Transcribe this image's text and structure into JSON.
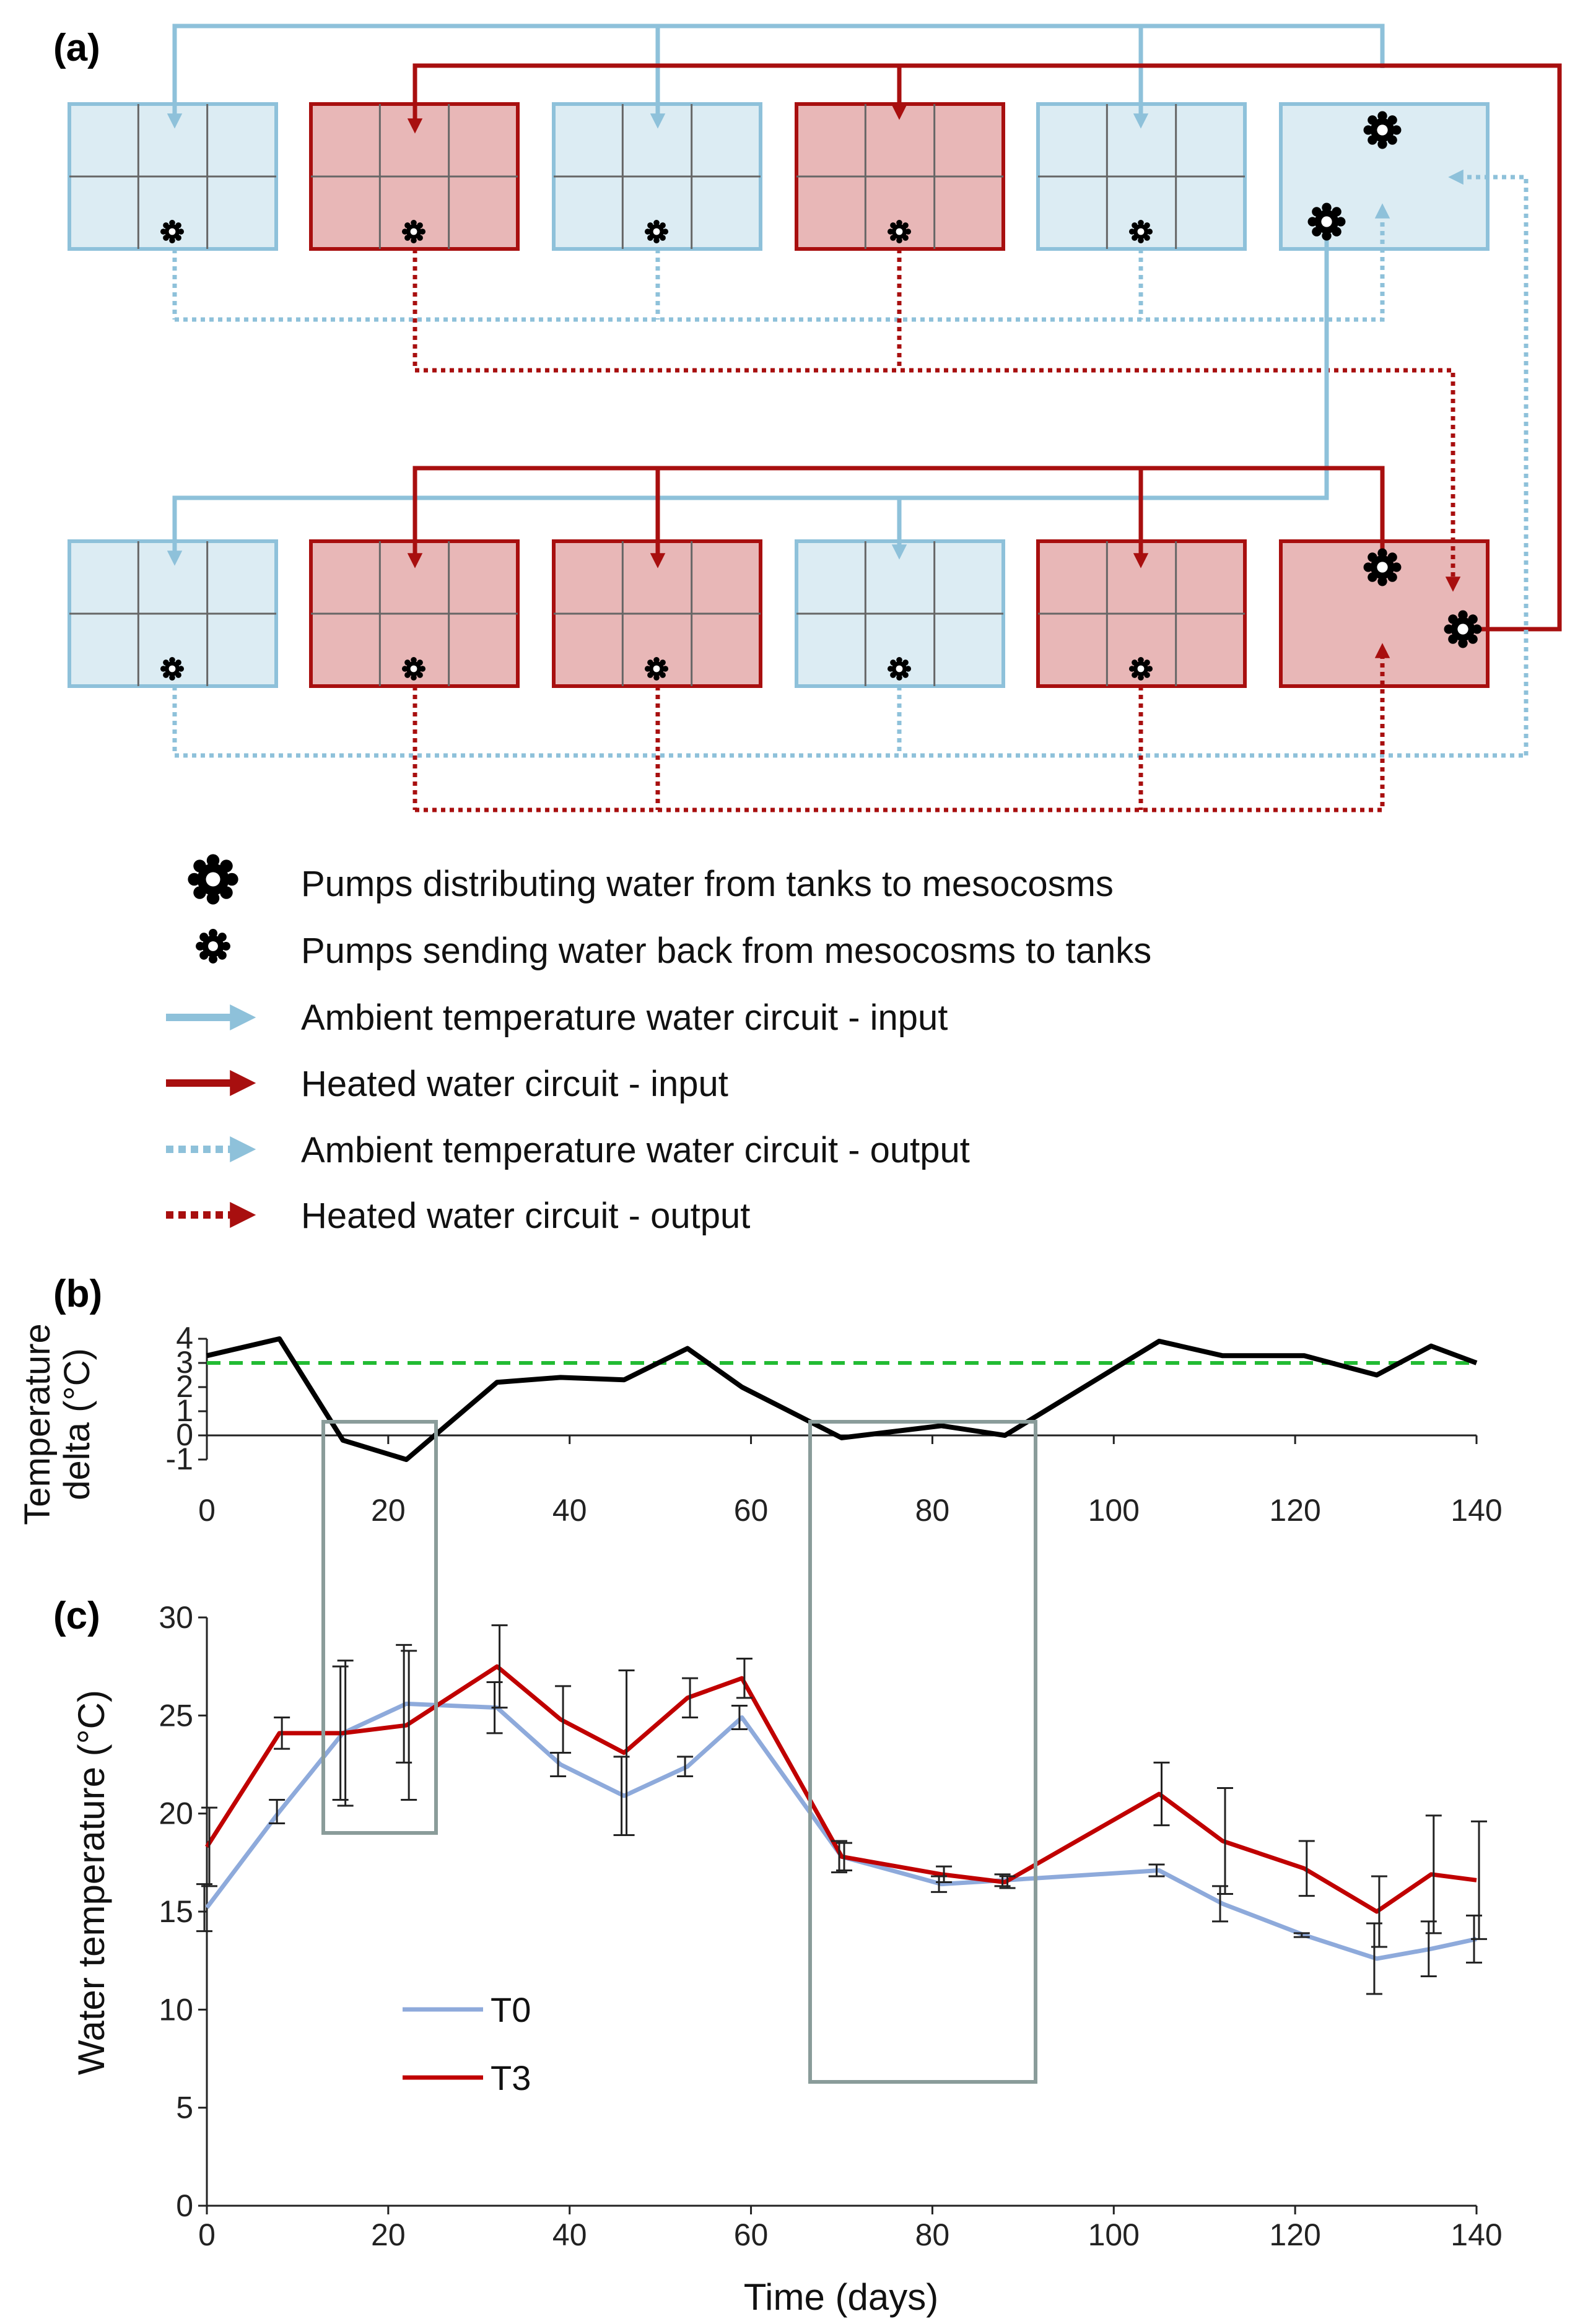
{
  "panel_a": {
    "label": "(a)",
    "legend": [
      {
        "symbol": "big-gear",
        "label": "Pumps distributing water from tanks to mesocosms"
      },
      {
        "symbol": "small-gear",
        "label": "Pumps sending water back from mesocosms to tanks"
      },
      {
        "symbol": "solid-blue",
        "label": "Ambient temperature water circuit - input"
      },
      {
        "symbol": "solid-red",
        "label": "Heated water circuit - input"
      },
      {
        "symbol": "dotted-blue",
        "label": "Ambient temperature water circuit - output"
      },
      {
        "symbol": "dotted-red",
        "label": "Heated water circuit - output"
      }
    ],
    "top_row": [
      "ambient",
      "heated",
      "ambient",
      "heated",
      "ambient",
      "ambient-tank"
    ],
    "bottom_row": [
      "ambient",
      "heated",
      "heated",
      "ambient",
      "heated",
      "heated-tank"
    ]
  },
  "colors": {
    "ambient_fill": "#dcecf3",
    "ambient_line": "#8ec1da",
    "heated_fill": "#e8b7b7",
    "heated_line": "#a80f0f",
    "t0_line": "#8eaadb",
    "t3_line": "#c00000",
    "target_line": "#22bb33",
    "highlight_box": "#8a9c9a"
  },
  "chart_data": [
    {
      "panel_label": "(b)",
      "type": "line",
      "ylabel_lines": [
        "Temperature",
        "delta (°C)"
      ],
      "ylim": [
        -1,
        4
      ],
      "yticks": [
        -1,
        0,
        1,
        2,
        3,
        4
      ],
      "xlim": [
        0,
        140
      ],
      "xticks": [
        0,
        20,
        40,
        60,
        80,
        100,
        120,
        140
      ],
      "target_line": 3,
      "series": [
        {
          "x": [
            0,
            8,
            15,
            22,
            32,
            39,
            46,
            53,
            59,
            70,
            81,
            88,
            105,
            112,
            121,
            129,
            135,
            140
          ],
          "y": [
            3.3,
            4.0,
            -0.2,
            -1.0,
            2.2,
            2.4,
            2.3,
            3.6,
            2.0,
            -0.1,
            0.4,
            0.0,
            3.9,
            3.3,
            3.3,
            2.5,
            3.7,
            3.0
          ]
        }
      ]
    },
    {
      "panel_label": "(c)",
      "type": "line",
      "xlabel": "Time (days)",
      "ylabel": "Water temperature (°C)",
      "ylim": [
        0,
        30
      ],
      "yticks": [
        0,
        5,
        10,
        15,
        20,
        25,
        30
      ],
      "xlim": [
        0,
        140
      ],
      "xticks": [
        0,
        20,
        40,
        60,
        80,
        100,
        120,
        140
      ],
      "legend_position": "lower-left",
      "series": [
        {
          "name": "T0",
          "x": [
            0,
            8,
            15,
            22,
            32,
            39,
            46,
            53,
            59,
            70,
            81,
            88,
            105,
            112,
            121,
            129,
            135,
            140
          ],
          "y": [
            15.2,
            20.1,
            24.1,
            25.6,
            25.4,
            22.5,
            20.9,
            22.4,
            24.9,
            17.8,
            16.4,
            16.6,
            17.1,
            15.4,
            13.8,
            12.6,
            13.1,
            13.6
          ],
          "err": [
            1.2,
            0.6,
            3.4,
            3.0,
            1.3,
            0.6,
            2.0,
            0.5,
            0.6,
            0.8,
            0.4,
            0.3,
            0.3,
            0.9,
            0.1,
            1.8,
            1.4,
            1.2
          ]
        },
        {
          "name": "T3",
          "x": [
            0,
            8,
            15,
            22,
            32,
            39,
            46,
            53,
            59,
            70,
            81,
            88,
            105,
            112,
            121,
            129,
            135,
            140
          ],
          "y": [
            18.3,
            24.1,
            24.1,
            24.5,
            27.5,
            24.8,
            23.1,
            25.9,
            26.9,
            17.8,
            16.9,
            16.5,
            21.0,
            18.6,
            17.2,
            15.0,
            16.9,
            16.6
          ],
          "err": [
            2.0,
            0.8,
            3.7,
            3.8,
            2.1,
            1.7,
            4.2,
            1.0,
            1.0,
            0.7,
            0.4,
            0.3,
            1.6,
            2.7,
            1.4,
            1.8,
            3.0,
            3.0
          ]
        }
      ]
    }
  ]
}
